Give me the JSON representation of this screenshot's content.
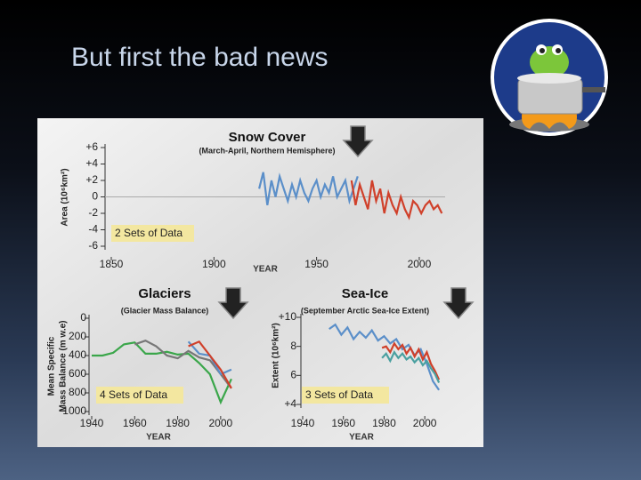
{
  "slide_title": "But first the bad news",
  "chart_data": [
    {
      "type": "line",
      "title": "Snow Cover",
      "subtitle": "(March-April, Northern Hemisphere)",
      "ylabel": "Area (10⁶km²)",
      "xlabel": "YEAR",
      "annotation": "2 Sets of Data",
      "xlim": [
        1850,
        2010
      ],
      "xticks": [
        1850,
        1900,
        1950,
        2000
      ],
      "ylim": [
        -6,
        6
      ],
      "yticks": [
        {
          "value": 6,
          "label": "+6"
        },
        {
          "value": 4,
          "label": "+4"
        },
        {
          "value": 2,
          "label": "+2"
        },
        0,
        -2,
        -4,
        -6
      ],
      "series": [
        {
          "color": "#5b8fc9",
          "x": [
            1922,
            1924,
            1926,
            1928,
            1930,
            1932,
            1934,
            1936,
            1938,
            1940,
            1942,
            1944,
            1946,
            1948,
            1950,
            1952,
            1954,
            1956,
            1958,
            1960,
            1962,
            1964,
            1966,
            1968,
            1970
          ],
          "values": [
            1,
            3,
            -1,
            2,
            0,
            2.5,
            1,
            -0.5,
            1.5,
            0,
            2,
            0.5,
            -0.5,
            1,
            2,
            0,
            1.5,
            0.5,
            2.5,
            0,
            1,
            2,
            -0.5,
            1,
            2.5
          ]
        },
        {
          "color": "#d0402a",
          "x": [
            1967,
            1969,
            1971,
            1973,
            1975,
            1977,
            1979,
            1981,
            1983,
            1985,
            1987,
            1989,
            1991,
            1993,
            1995,
            1997,
            1999,
            2001,
            2003,
            2005,
            2007,
            2009,
            2011
          ],
          "values": [
            2,
            -1,
            1.5,
            0,
            -1.5,
            2,
            -0.5,
            1,
            -2,
            0.5,
            -1,
            -2,
            0,
            -1.5,
            -2.5,
            -0.5,
            -1,
            -2,
            -1,
            -0.5,
            -1.5,
            -1,
            -2
          ]
        }
      ]
    },
    {
      "type": "line",
      "title": "Glaciers",
      "subtitle": "(Glacier Mass Balance)",
      "ylabel": [
        "Mean Specific",
        "Mass Balance (m w.e)"
      ],
      "xlabel": "YEAR",
      "annotation": "4 Sets of Data",
      "xlim": [
        1940,
        2010
      ],
      "xticks": [
        1940,
        1960,
        1980,
        2000
      ],
      "ylim": [
        1000,
        0
      ],
      "yticks": [
        0,
        200,
        400,
        600,
        800,
        1000
      ],
      "series": [
        {
          "color": "#3aa64a",
          "x": [
            1940,
            1945,
            1950,
            1955,
            1960,
            1965,
            1970,
            1975,
            1980,
            1985,
            1990,
            1995,
            2000,
            2005
          ],
          "values": [
            400,
            400,
            370,
            280,
            260,
            380,
            380,
            360,
            390,
            380,
            480,
            600,
            900,
            650
          ]
        },
        {
          "color": "#777777",
          "x": [
            1960,
            1965,
            1970,
            1975,
            1980,
            1985,
            1990,
            1995,
            2000,
            2005
          ],
          "values": [
            280,
            240,
            300,
            400,
            430,
            350,
            420,
            450,
            600,
            750
          ]
        },
        {
          "color": "#5b8fc9",
          "x": [
            1985,
            1990,
            1995,
            2000,
            2005
          ],
          "values": [
            250,
            380,
            400,
            600,
            550
          ]
        },
        {
          "color": "#d0402a",
          "x": [
            1985,
            1990,
            1995,
            2000,
            2005
          ],
          "values": [
            300,
            250,
            400,
            550,
            750
          ]
        }
      ]
    },
    {
      "type": "line",
      "title": "Sea-Ice",
      "subtitle": "(September Arctic Sea-Ice Extent)",
      "ylabel": "Extent (10⁶km²)",
      "xlabel": "YEAR",
      "annotation": "3 Sets of Data",
      "xlim": [
        1940,
        2010
      ],
      "xticks": [
        1940,
        1960,
        1980,
        2000
      ],
      "ylim": [
        4,
        10
      ],
      "yticks": [
        {
          "value": 10,
          "label": "+10"
        },
        8,
        6,
        {
          "value": 4,
          "label": "+4"
        }
      ],
      "series": [
        {
          "color": "#5b8fc9",
          "x": [
            1953,
            1956,
            1959,
            1962,
            1965,
            1968,
            1971,
            1974,
            1977,
            1980,
            1983,
            1986,
            1989,
            1992,
            1995,
            1998,
            2001,
            2004,
            2007
          ],
          "values": [
            9.2,
            9.5,
            8.8,
            9.3,
            8.5,
            9.0,
            8.6,
            9.1,
            8.4,
            8.7,
            8.2,
            8.5,
            7.8,
            8.1,
            7.4,
            7.8,
            6.8,
            5.6,
            5.0
          ]
        },
        {
          "color": "#d0402a",
          "x": [
            1979,
            1981,
            1983,
            1985,
            1987,
            1989,
            1991,
            1993,
            1995,
            1997,
            1999,
            2001,
            2003,
            2005,
            2007
          ],
          "values": [
            7.9,
            8.0,
            7.6,
            8.2,
            7.8,
            8.1,
            7.5,
            7.9,
            7.3,
            7.8,
            7.1,
            7.6,
            6.8,
            6.3,
            5.7
          ]
        },
        {
          "color": "#4aa0a0",
          "x": [
            1979,
            1981,
            1983,
            1985,
            1987,
            1989,
            1991,
            1993,
            1995,
            1997,
            1999,
            2001,
            2003,
            2005,
            2007
          ],
          "values": [
            7.2,
            7.5,
            7.0,
            7.6,
            7.2,
            7.5,
            7.1,
            7.3,
            6.9,
            7.2,
            6.7,
            7.0,
            6.5,
            6.1,
            5.5
          ]
        }
      ]
    }
  ]
}
